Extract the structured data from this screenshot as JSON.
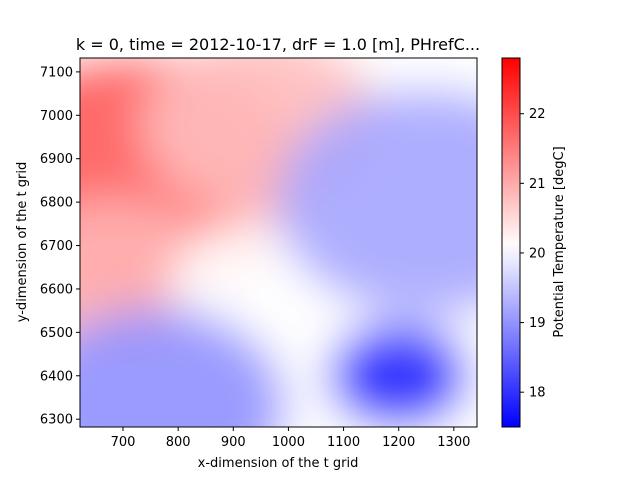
{
  "chart_data": {
    "type": "heatmap",
    "title": "k = 0, time = 2012-10-17, drF = 1.0 [m], PHrefC...",
    "xlabel": "x-dimension of the t grid",
    "ylabel": "y-dimension of the t grid",
    "xlim": [
      622,
      1342
    ],
    "ylim": [
      6282,
      7132
    ],
    "xticks": [
      700,
      800,
      900,
      1000,
      1100,
      1200,
      1300
    ],
    "yticks": [
      6300,
      6400,
      6500,
      6600,
      6700,
      6800,
      6900,
      7000,
      7100
    ],
    "colorbar": {
      "label": "Potential Temperature [degC]",
      "colormap": "bwr",
      "range": [
        17.5,
        22.8
      ],
      "center": 20.1,
      "ticks": [
        18,
        19,
        20,
        21,
        22
      ],
      "low_color": "#0000ff",
      "mid_color": "#ffffff",
      "high_color": "#ff0000"
    },
    "field_regions": [
      {
        "name": "warm-northwest",
        "x": 720,
        "y": 6850,
        "value": 21.8
      },
      {
        "name": "warm-west-band",
        "x": 680,
        "y": 6620,
        "value": 20.9
      },
      {
        "name": "warm-north-center",
        "x": 950,
        "y": 6980,
        "value": 20.8
      },
      {
        "name": "neutral-center",
        "x": 960,
        "y": 6600,
        "value": 20.1
      },
      {
        "name": "cool-east",
        "x": 1250,
        "y": 6800,
        "value": 19.2
      },
      {
        "name": "cool-southwest",
        "x": 760,
        "y": 6330,
        "value": 19.0
      },
      {
        "name": "cold-eddy",
        "x": 1200,
        "y": 6400,
        "value": 17.9
      }
    ]
  }
}
